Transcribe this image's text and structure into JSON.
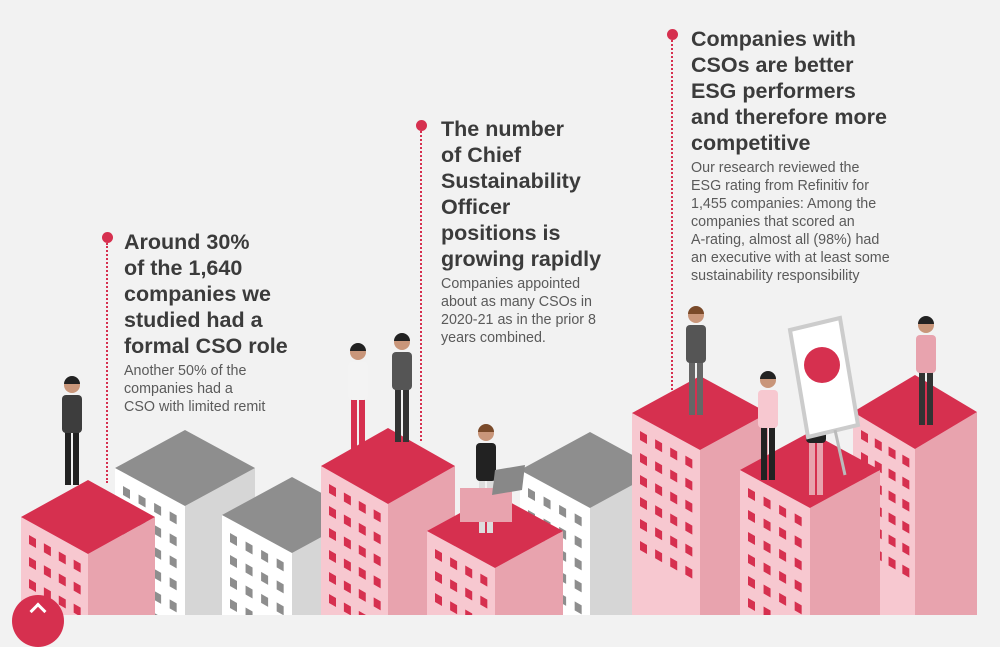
{
  "blocks": [
    {
      "heading": [
        "Around 30%",
        "of the 1,640",
        "companies we",
        "studied had a",
        "formal CSO role"
      ],
      "body": [
        "Another 50% of the",
        "companies had a",
        "CSO with limited remit"
      ]
    },
    {
      "heading": [
        "The number",
        "of Chief",
        "Sustainability",
        "Officer",
        "positions is",
        "growing rapidly"
      ],
      "body": [
        "Companies appointed",
        "about as many CSOs in",
        "2020-21 as in the prior 8",
        "years combined."
      ]
    },
    {
      "heading": [
        "Companies with",
        "CSOs are better",
        "ESG performers",
        "and therefore more",
        "competitive"
      ],
      "body": [
        "Our research reviewed the",
        "ESG rating from Refinitiv for",
        "1,455 companies: Among the",
        "companies that scored an",
        "A-rating, almost all (98%) had",
        "an executive with at least some",
        "sustainability responsibility"
      ]
    }
  ],
  "colors": {
    "accent": "#d6304f",
    "background": "#f2f2f2",
    "text": "#3b3b3b"
  },
  "scroll_top_icon": "chevron-up-icon"
}
